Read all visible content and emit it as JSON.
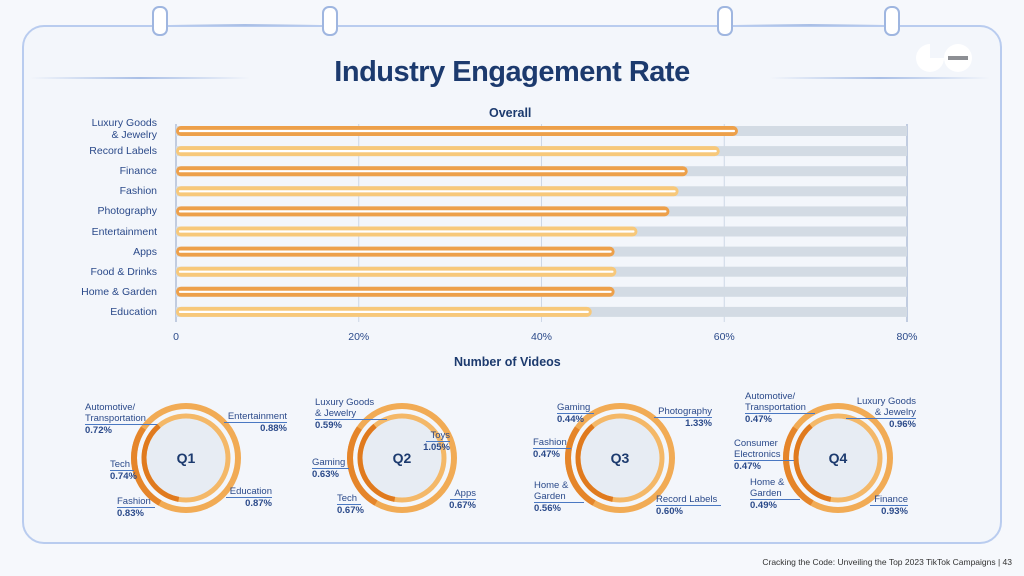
{
  "title": "Industry Engagement Rate",
  "footer": "Cracking the Code: Unveiling the Top 2023 TikTok Campaigns | 43",
  "colors": {
    "dark_bar": "#eda04a",
    "light_bar": "#f7c87a",
    "track": "#d3dbe4",
    "text": "#1c3a6e"
  },
  "chart_data": [
    {
      "type": "bar",
      "orientation": "horizontal",
      "title": "Overall",
      "categories": [
        "Luxury Goods & Jewelry",
        "Record Labels",
        "Finance",
        "Fashion",
        "Photography",
        "Entertainment",
        "Apps",
        "Food & Drinks",
        "Home & Garden",
        "Education"
      ],
      "category_lines": [
        [
          "Luxury Goods",
          "& Jewelry"
        ],
        [
          "Record Labels"
        ],
        [
          "Finance"
        ],
        [
          "Fashion"
        ],
        [
          "Photography"
        ],
        [
          "Entertainment"
        ],
        [
          "Apps"
        ],
        [
          "Food & Drinks"
        ],
        [
          "Home & Garden"
        ],
        [
          "Education"
        ]
      ],
      "values": [
        61.5,
        59.5,
        56,
        55,
        54,
        50.5,
        48,
        48.2,
        48,
        45.5
      ],
      "xlim": [
        0,
        80
      ],
      "xticks": [
        "0",
        "20%",
        "40%",
        "60%",
        "80%"
      ],
      "grid": true,
      "unit": "%"
    },
    {
      "type": "pie",
      "subtitle": "Number of Videos",
      "donuts": [
        {
          "label": "Q1",
          "slices": [
            {
              "name": "Automotive/ Transportation",
              "value": "0.72%"
            },
            {
              "name": "Entertainment",
              "value": "0.88%"
            },
            {
              "name": "Tech",
              "value": "0.74%"
            },
            {
              "name": "Fashion",
              "value": "0.83%"
            },
            {
              "name": "Education",
              "value": "0.87%"
            }
          ]
        },
        {
          "label": "Q2",
          "slices": [
            {
              "name": "Luxury Goods & Jewelry",
              "value": "0.59%"
            },
            {
              "name": "Toys",
              "value": "1.05%"
            },
            {
              "name": "Gaming",
              "value": "0.63%"
            },
            {
              "name": "Tech",
              "value": "0.67%"
            },
            {
              "name": "Apps",
              "value": "0.67%"
            }
          ]
        },
        {
          "label": "Q3",
          "slices": [
            {
              "name": "Gaming",
              "value": "0.44%"
            },
            {
              "name": "Photography",
              "value": "1.33%"
            },
            {
              "name": "Fashion",
              "value": "0.47%"
            },
            {
              "name": "Home & Garden",
              "value": "0.56%"
            },
            {
              "name": "Record Labels",
              "value": "0.60%"
            }
          ]
        },
        {
          "label": "Q4",
          "slices": [
            {
              "name": "Automotive/ Transportation",
              "value": "0.47%"
            },
            {
              "name": "Luxury Goods & Jewelry",
              "value": "0.96%"
            },
            {
              "name": "Consumer Electronics",
              "value": "0.47%"
            },
            {
              "name": "Home & Garden",
              "value": "0.49%"
            },
            {
              "name": "Finance",
              "value": "0.93%"
            }
          ]
        }
      ]
    }
  ]
}
